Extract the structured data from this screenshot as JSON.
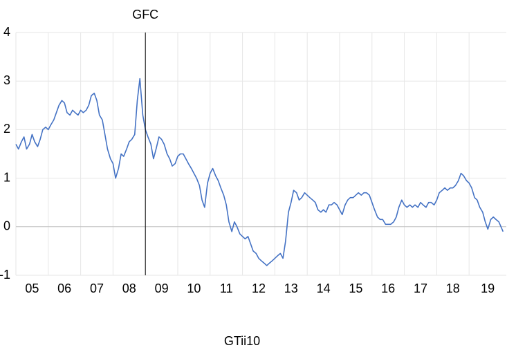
{
  "chart_data": {
    "type": "line",
    "annotations": [
      {
        "text": "GFC",
        "x": 2009.0
      }
    ],
    "x": [
      2005.0,
      2005.08,
      2005.17,
      2005.25,
      2005.33,
      2005.42,
      2005.5,
      2005.58,
      2005.67,
      2005.75,
      2005.83,
      2005.92,
      2006.0,
      2006.08,
      2006.17,
      2006.25,
      2006.33,
      2006.42,
      2006.5,
      2006.58,
      2006.67,
      2006.75,
      2006.83,
      2006.92,
      2007.0,
      2007.08,
      2007.17,
      2007.25,
      2007.33,
      2007.42,
      2007.5,
      2007.58,
      2007.67,
      2007.75,
      2007.83,
      2007.92,
      2008.0,
      2008.08,
      2008.17,
      2008.25,
      2008.33,
      2008.42,
      2008.5,
      2008.58,
      2008.67,
      2008.75,
      2008.83,
      2008.92,
      2009.0,
      2009.08,
      2009.17,
      2009.25,
      2009.33,
      2009.42,
      2009.5,
      2009.58,
      2009.67,
      2009.75,
      2009.83,
      2009.92,
      2010.0,
      2010.08,
      2010.17,
      2010.25,
      2010.33,
      2010.42,
      2010.5,
      2010.58,
      2010.67,
      2010.75,
      2010.83,
      2010.92,
      2011.0,
      2011.08,
      2011.17,
      2011.25,
      2011.33,
      2011.42,
      2011.5,
      2011.58,
      2011.67,
      2011.75,
      2011.83,
      2011.92,
      2012.0,
      2012.08,
      2012.17,
      2012.25,
      2012.33,
      2012.42,
      2012.5,
      2012.58,
      2012.67,
      2012.75,
      2012.83,
      2012.92,
      2013.0,
      2013.08,
      2013.17,
      2013.25,
      2013.33,
      2013.42,
      2013.5,
      2013.58,
      2013.67,
      2013.75,
      2013.83,
      2013.92,
      2014.0,
      2014.08,
      2014.17,
      2014.25,
      2014.33,
      2014.42,
      2014.5,
      2014.58,
      2014.67,
      2014.75,
      2014.83,
      2014.92,
      2015.0,
      2015.08,
      2015.17,
      2015.25,
      2015.33,
      2015.42,
      2015.5,
      2015.58,
      2015.67,
      2015.75,
      2015.83,
      2015.92,
      2016.0,
      2016.08,
      2016.17,
      2016.25,
      2016.33,
      2016.42,
      2016.5,
      2016.58,
      2016.67,
      2016.75,
      2016.83,
      2016.92,
      2017.0,
      2017.08,
      2017.17,
      2017.25,
      2017.33,
      2017.42,
      2017.5,
      2017.58,
      2017.67,
      2017.75,
      2017.83,
      2017.92,
      2018.0,
      2018.08,
      2018.17,
      2018.25,
      2018.33,
      2018.42,
      2018.5,
      2018.58,
      2018.67,
      2018.75,
      2018.83,
      2018.92,
      2019.0,
      2019.08,
      2019.17,
      2019.25,
      2019.33,
      2019.42,
      2019.5,
      2019.58,
      2019.67,
      2019.75,
      2019.83,
      2019.92,
      2020.05
    ],
    "series": [
      {
        "name": "GTii10",
        "color": "#4472c4",
        "values": [
          1.7,
          1.6,
          1.75,
          1.85,
          1.6,
          1.7,
          1.9,
          1.75,
          1.65,
          1.8,
          2.0,
          2.05,
          2.0,
          2.1,
          2.2,
          2.35,
          2.5,
          2.6,
          2.55,
          2.35,
          2.3,
          2.4,
          2.35,
          2.3,
          2.4,
          2.35,
          2.4,
          2.5,
          2.7,
          2.75,
          2.6,
          2.3,
          2.2,
          1.9,
          1.6,
          1.4,
          1.3,
          1.0,
          1.2,
          1.5,
          1.45,
          1.6,
          1.75,
          1.8,
          1.9,
          2.6,
          3.05,
          2.3,
          2.0,
          1.85,
          1.7,
          1.4,
          1.6,
          1.85,
          1.8,
          1.7,
          1.5,
          1.4,
          1.25,
          1.3,
          1.45,
          1.5,
          1.5,
          1.4,
          1.3,
          1.2,
          1.1,
          1.0,
          0.85,
          0.55,
          0.4,
          0.9,
          1.1,
          1.2,
          1.05,
          0.95,
          0.8,
          0.65,
          0.45,
          0.1,
          -0.1,
          0.1,
          0.0,
          -0.15,
          -0.2,
          -0.25,
          -0.2,
          -0.35,
          -0.5,
          -0.55,
          -0.65,
          -0.7,
          -0.75,
          -0.8,
          -0.75,
          -0.7,
          -0.65,
          -0.6,
          -0.55,
          -0.65,
          -0.3,
          0.3,
          0.5,
          0.75,
          0.7,
          0.55,
          0.6,
          0.7,
          0.65,
          0.6,
          0.55,
          0.5,
          0.35,
          0.3,
          0.35,
          0.3,
          0.45,
          0.45,
          0.5,
          0.45,
          0.35,
          0.25,
          0.45,
          0.55,
          0.6,
          0.6,
          0.65,
          0.7,
          0.65,
          0.7,
          0.7,
          0.65,
          0.5,
          0.35,
          0.2,
          0.15,
          0.15,
          0.05,
          0.05,
          0.05,
          0.1,
          0.2,
          0.4,
          0.55,
          0.45,
          0.4,
          0.45,
          0.4,
          0.45,
          0.4,
          0.5,
          0.45,
          0.4,
          0.5,
          0.5,
          0.45,
          0.55,
          0.7,
          0.75,
          0.8,
          0.75,
          0.8,
          0.8,
          0.85,
          0.95,
          1.1,
          1.05,
          0.95,
          0.9,
          0.8,
          0.6,
          0.55,
          0.4,
          0.3,
          0.1,
          -0.05,
          0.15,
          0.2,
          0.15,
          0.1,
          -0.1
        ]
      }
    ],
    "xlim": [
      2005,
      2020.15
    ],
    "xticks": [
      {
        "value": 2005,
        "label": "05"
      },
      {
        "value": 2006,
        "label": "06"
      },
      {
        "value": 2007,
        "label": "07"
      },
      {
        "value": 2008,
        "label": "08"
      },
      {
        "value": 2009,
        "label": "09"
      },
      {
        "value": 2010,
        "label": "10"
      },
      {
        "value": 2011,
        "label": "11"
      },
      {
        "value": 2012,
        "label": "12"
      },
      {
        "value": 2013,
        "label": "13"
      },
      {
        "value": 2014,
        "label": "14"
      },
      {
        "value": 2015,
        "label": "15"
      },
      {
        "value": 2016,
        "label": "16"
      },
      {
        "value": 2017,
        "label": "17"
      },
      {
        "value": 2018,
        "label": "18"
      },
      {
        "value": 2019,
        "label": "19"
      }
    ],
    "ylim": [
      -1,
      4
    ],
    "yticks": [
      -1,
      0,
      1,
      2,
      3,
      4
    ],
    "grid": true,
    "legend": "bottom"
  }
}
